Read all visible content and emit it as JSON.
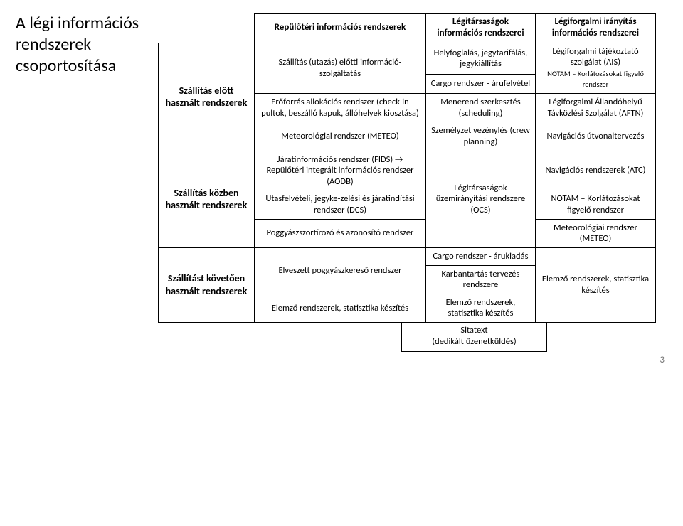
{
  "title": "A légi információs rendszerek csoportosítása",
  "pageNumber": "3",
  "rowHeaders": [
    "Szállítás előtt használt rendszerek",
    "Szállítás közben használt rendszerek",
    "Szállítást követően használt rendszerek"
  ],
  "colHeaders": [
    "Repülőtéri információs rendszerek",
    "Légitársaságok információs rendszerei",
    "Légiforgalmi irányítás információs rendszerei"
  ],
  "r0c0a": "Szállítás (utazás) előtti információ-szolgáltatás",
  "r0c0b": "Erőforrás allokációs rendszer (check-in pultok, beszálló kapuk, állóhelyek kiosztása)",
  "r0c0c": "Meteorológiai rendszer (METEO)",
  "r0c1a": "Helyfoglalás, jegytarifálás, jegykiállítás",
  "r0c1b": "Cargo rendszer - árufelvétel",
  "r0c1c": "Menerend szerkesztés (scheduling)",
  "r0c1d": "Személyzet vezénylés (crew planning)",
  "r0c2a1": "Légiforgalmi tájékoztató szolgálat (AIS)",
  "r0c2a2": "NOTAM – Korlátozásokat figyelő rendszer",
  "r0c2b": "Légiforgalmi Állandóhelyű Távközlési Szolgálat (AFTN)",
  "r0c2c": "Navigációs útvonaltervezés",
  "r1c0a": "Járatinformációs rendszer (FIDS) → Repülőtéri integrált információs rendszer (AODB)",
  "r1c0b": "Utasfelvételi, jegyke-zelési és járatindítási rendszer (DCS)",
  "r1c0c": "Poggyászszortírozó és azonosító rendszer",
  "r1c1": "Légitársaságok üzemirányítási rendszere (OCS)",
  "r1c2a": "Navigációs rendszerek (ATC)",
  "r1c2b": "NOTAM – Korlátozásokat figyelő rendszer",
  "r1c2c": "Meteorológiai rendszer (METEO)",
  "r2c0a": "Elveszett poggyászkereső rendszer",
  "r2c0b": "Elemző rendszerek, statisztika készítés",
  "r2c1a": "Cargo rendszer - árukiadás",
  "r2c1b": "Karbantartás tervezés rendszere",
  "r2c1c": "Elemző rendszerek, statisztika készítés",
  "r2c2": "Elemző rendszerek, statisztika készítés",
  "footerCell": "Sitatext\n(dedikált üzenetküldés)"
}
